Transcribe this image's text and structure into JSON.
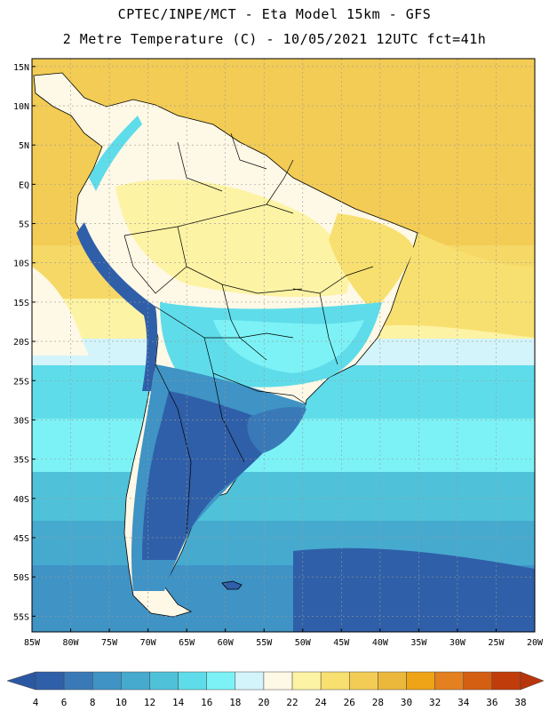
{
  "header": {
    "line1": "CPTEC/INPE/MCT -  Eta Model 15km - GFS",
    "line2": "2 Metre Temperature (C) - 10/05/2021 12UTC fct=41h"
  },
  "map": {
    "lat_labels": [
      "15N",
      "10N",
      "5N",
      "EQ",
      "5S",
      "10S",
      "15S",
      "20S",
      "25S",
      "30S",
      "35S",
      "40S",
      "45S",
      "50S",
      "55S"
    ],
    "lon_labels": [
      "85W",
      "80W",
      "75W",
      "70W",
      "65W",
      "60W",
      "55W",
      "50W",
      "45W",
      "40W",
      "35W",
      "30W",
      "25W",
      "20W"
    ],
    "lat_values": [
      15,
      10,
      5,
      0,
      -5,
      -10,
      -15,
      -20,
      -25,
      -30,
      -35,
      -40,
      -45,
      -50,
      -55
    ],
    "lon_values": [
      -85,
      -80,
      -75,
      -70,
      -65,
      -60,
      -55,
      -50,
      -45,
      -40,
      -35,
      -30,
      -25,
      -20
    ],
    "extent": {
      "lon_min": -85,
      "lon_max": -20,
      "lat_min": -57,
      "lat_max": 16
    },
    "features": [
      "Atlantic Ocean",
      "Pacific Ocean",
      "South America",
      "Andes",
      "Falkland Islands"
    ]
  },
  "colorbar": {
    "labels": [
      "4",
      "6",
      "8",
      "10",
      "12",
      "14",
      "16",
      "18",
      "20",
      "22",
      "24",
      "26",
      "28",
      "30",
      "32",
      "34",
      "36",
      "38"
    ],
    "colors": [
      "#2f5fa8",
      "#3a79b8",
      "#3f93c5",
      "#46aacf",
      "#4fc2d9",
      "#5fdcea",
      "#7cf2f6",
      "#d4f4fb",
      "#fef8e6",
      "#fdf3a4",
      "#f8e070",
      "#f3cc55",
      "#ecb83c",
      "#efa316",
      "#e48020",
      "#d45e12",
      "#c03c0a"
    ],
    "low_color": "#2b58a2",
    "high_color": "#b8350b"
  },
  "legend_values": [
    4,
    6,
    8,
    10,
    12,
    14,
    16,
    18,
    20,
    22,
    24,
    26,
    28,
    30,
    32,
    34,
    36,
    38
  ]
}
